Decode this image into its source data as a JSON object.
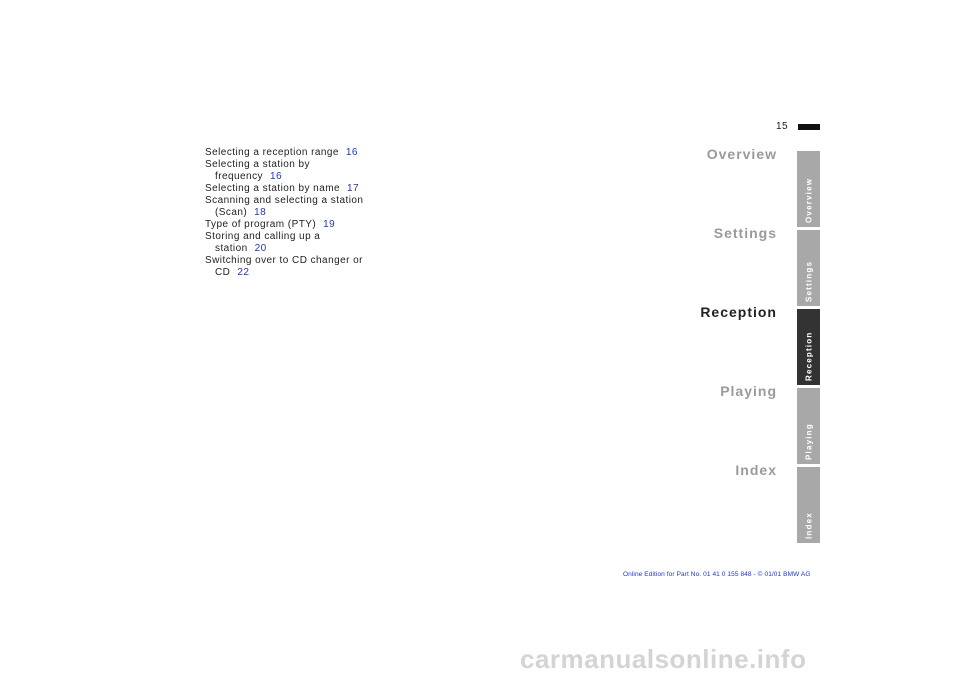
{
  "page": {
    "number": "15"
  },
  "toc": [
    {
      "lines": [
        "Selecting a reception range"
      ],
      "page": "16"
    },
    {
      "lines": [
        "Selecting a station by",
        "frequency"
      ],
      "page": "16"
    },
    {
      "lines": [
        "Selecting a station by name"
      ],
      "page": "17"
    },
    {
      "lines": [
        "Scanning and selecting a station",
        "(Scan)"
      ],
      "page": "18"
    },
    {
      "lines": [
        "Type of program (PTY)"
      ],
      "page": "19"
    },
    {
      "lines": [
        "Storing and calling up a",
        "station"
      ],
      "page": "20"
    },
    {
      "lines": [
        "Switching over to CD changer or",
        "CD"
      ],
      "page": "22"
    }
  ],
  "sections": [
    {
      "label": "Overview",
      "active": false
    },
    {
      "label": "Settings",
      "active": false
    },
    {
      "label": "Reception",
      "active": true
    },
    {
      "label": "Playing",
      "active": false
    },
    {
      "label": "Index",
      "active": false
    }
  ],
  "footer": {
    "text": "Online Edition for Part No. 01 41 0 155 848 - © 01/01 BMW AG"
  },
  "watermark": {
    "text": "carmanualsonline.info"
  },
  "colors": {
    "link": "#2233cc",
    "inactive_tab": "#a8a8a8",
    "active_tab": "#333333",
    "inactive_section": "#9a9a9a"
  }
}
